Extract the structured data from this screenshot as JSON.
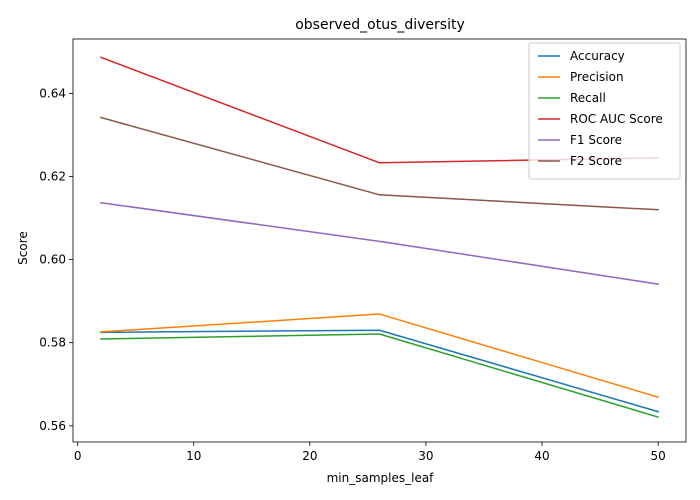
{
  "chart_data": {
    "type": "line",
    "title": "observed_otus_diversity",
    "xlabel": "min_samples_leaf",
    "ylabel": "Score",
    "x": [
      2,
      26,
      50
    ],
    "xlim": [
      -0.4,
      52.4
    ],
    "ylim": [
      0.5561,
      0.6531
    ],
    "xticks": [
      0,
      10,
      20,
      30,
      40,
      50
    ],
    "yticks": [
      0.56,
      0.58,
      0.6,
      0.62,
      0.64
    ],
    "xtick_labels": [
      "0",
      "10",
      "20",
      "30",
      "40",
      "50"
    ],
    "ytick_labels": [
      "0.56",
      "0.58",
      "0.60",
      "0.62",
      "0.64"
    ],
    "grid": false,
    "legend_position": "top-right",
    "series": [
      {
        "name": "Accuracy",
        "color": "#1f77b4",
        "values": [
          0.5825,
          0.583,
          0.5634
        ]
      },
      {
        "name": "Precision",
        "color": "#ff7f0e",
        "values": [
          0.5826,
          0.5869,
          0.5669
        ]
      },
      {
        "name": "Recall",
        "color": "#2ca02c",
        "values": [
          0.5809,
          0.5821,
          0.5621
        ]
      },
      {
        "name": "ROC AUC Score",
        "color": "#d62728",
        "values": [
          0.6487,
          0.6233,
          0.6245
        ]
      },
      {
        "name": "F1 Score",
        "color": "#9467bd",
        "values": [
          0.6137,
          0.6044,
          0.5941
        ]
      },
      {
        "name": "F2 Score",
        "color": "#8c564b",
        "values": [
          0.6342,
          0.6156,
          0.612
        ]
      }
    ]
  }
}
